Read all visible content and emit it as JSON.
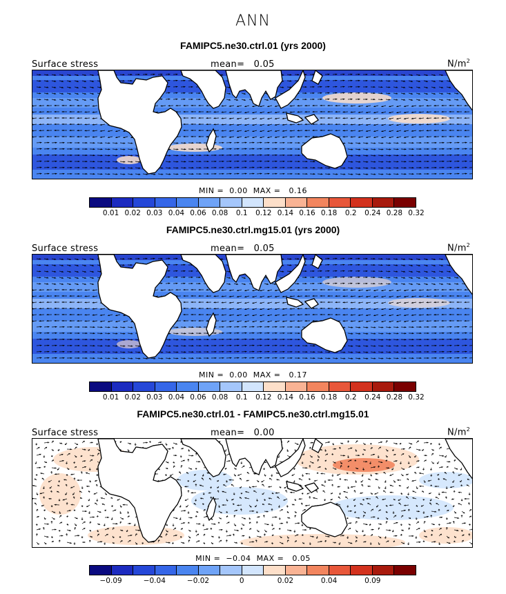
{
  "season": "ANN",
  "field_label": "Surface stress",
  "units": "N/m",
  "units_sup": "2",
  "panels": [
    {
      "title": "FAMIPC5.ne30.ctrl.01 (yrs 2000)",
      "mean_label": "mean=",
      "mean": "0.05",
      "min_label": "MIN =",
      "min": "0.00",
      "max_label": "MAX =",
      "max": "0.16"
    },
    {
      "title": "FAMIPC5.ne30.ctrl.mg15.01 (yrs 2000)",
      "mean_label": "mean=",
      "mean": "0.05",
      "min_label": "MIN =",
      "min": "0.00",
      "max_label": "MAX =",
      "max": "0.17"
    },
    {
      "title": "FAMIPC5.ne30.ctrl.01 - FAMIPC5.ne30.ctrl.mg15.01",
      "mean_label": "mean=",
      "mean": "0.00",
      "min_label": "MIN =",
      "min": "−0.04",
      "max_label": "MAX =",
      "max": "0.05"
    }
  ],
  "colorbars": {
    "field": {
      "colors": [
        "#0a0a80",
        "#1c2bc0",
        "#2547d8",
        "#3566e8",
        "#4a85f0",
        "#6fa3f7",
        "#a4c6fb",
        "#d2e5fd",
        "#fddfc9",
        "#f9b394",
        "#f2855e",
        "#e8573a",
        "#d3321e",
        "#a81a0d",
        "#7a0000"
      ],
      "labels": [
        "0.01",
        "0.02",
        "0.03",
        "0.04",
        "0.06",
        "0.08",
        "0.1",
        "0.12",
        "0.14",
        "0.16",
        "0.18",
        "0.2",
        "0.24",
        "0.28",
        "0.32"
      ]
    },
    "diff": {
      "colors": [
        "#0a0a80",
        "#1c2bc0",
        "#2547d8",
        "#3566e8",
        "#4a85f0",
        "#6fa3f7",
        "#a4c6fb",
        "#d2e5fd",
        "#fddfc9",
        "#f9b394",
        "#f2855e",
        "#e8573a",
        "#d3321e",
        "#a81a0d",
        "#7a0000"
      ],
      "labels": [
        "−0.09",
        "−0.04",
        "−0.02",
        "0",
        "0.02",
        "0.04",
        "0.09"
      ]
    }
  }
}
